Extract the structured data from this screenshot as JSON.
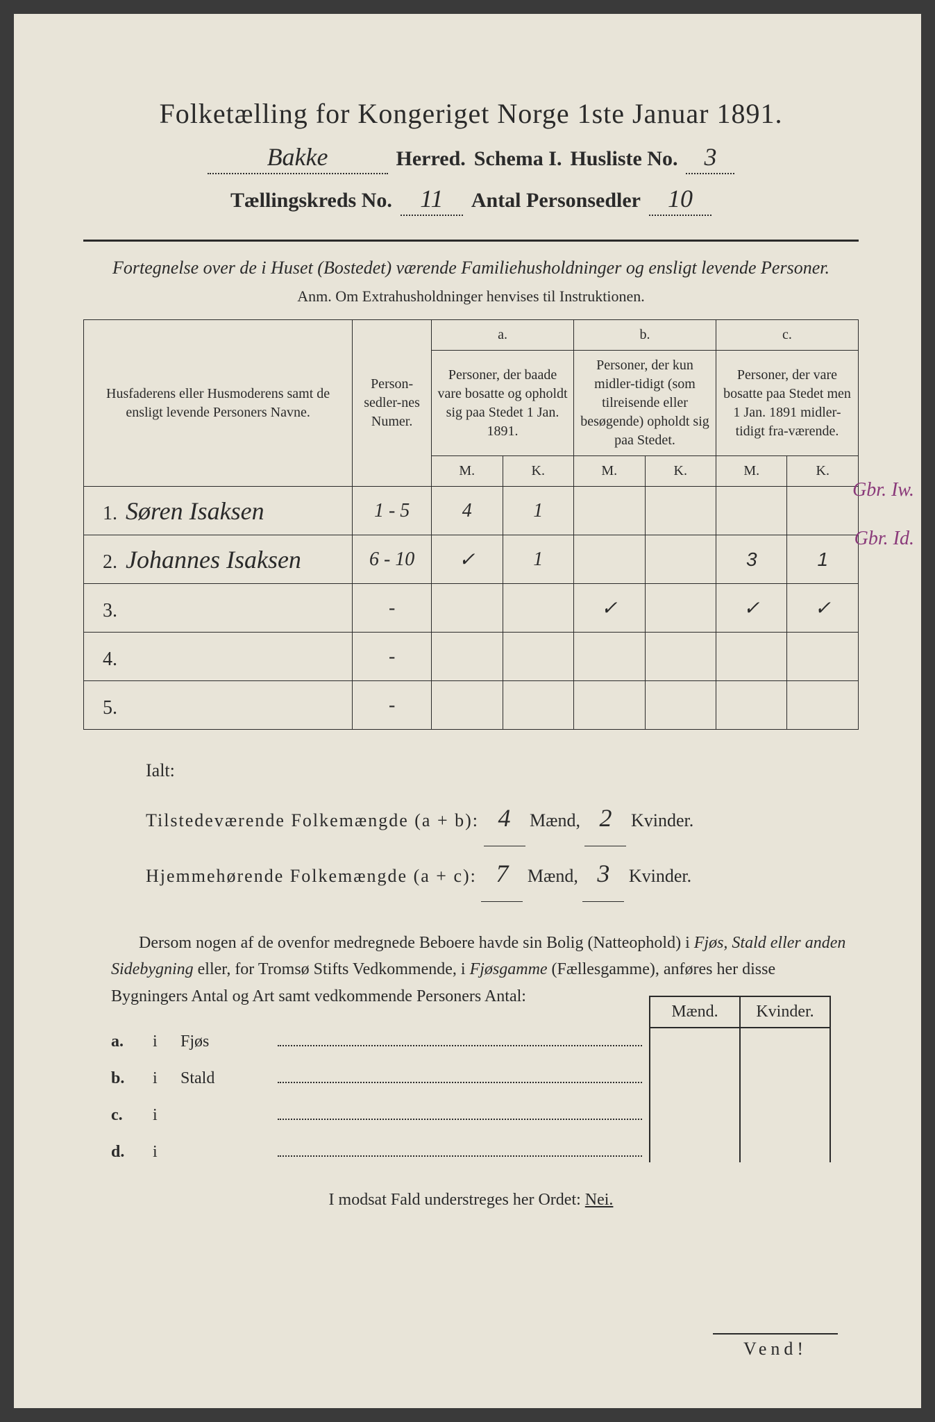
{
  "title": "Folketælling for Kongeriget Norge 1ste Januar 1891.",
  "header": {
    "herred_value": "Bakke",
    "herred_label": "Herred.",
    "schema_label": "Schema I.",
    "husliste_label": "Husliste No.",
    "husliste_value": "3",
    "kreds_label": "Tællingskreds No.",
    "kreds_value": "11",
    "antal_label": "Antal Personsedler",
    "antal_value": "10"
  },
  "subtitle": "Fortegnelse over de i Huset (Bostedet) værende Familiehusholdninger og ensligt levende Personer.",
  "anm": "Anm. Om Extrahusholdninger henvises til Instruktionen.",
  "table": {
    "col_name": "Husfaderens eller Husmoderens samt de ensligt levende Personers Navne.",
    "col_num": "Person-sedler-nes Numer.",
    "col_a_letter": "a.",
    "col_a": "Personer, der baade vare bosatte og opholdt sig paa Stedet 1 Jan. 1891.",
    "col_b_letter": "b.",
    "col_b": "Personer, der kun midler-tidigt (som tilreisende eller besøgende) opholdt sig paa Stedet.",
    "col_c_letter": "c.",
    "col_c": "Personer, der vare bosatte paa Stedet men 1 Jan. 1891 midler-tidigt fra-værende.",
    "m": "M.",
    "k": "K.",
    "rows": [
      {
        "n": "1.",
        "name": "Søren Isaksen",
        "num": "1 - 5",
        "am": "4",
        "ak": "1",
        "bm": "",
        "bk": "",
        "cm": "",
        "ck": "",
        "ann": "Gbr. Iw."
      },
      {
        "n": "2.",
        "name": "Johannes Isaksen",
        "num": "6 - 10",
        "am": "✓",
        "ak": "1",
        "bm": "",
        "bk": "",
        "cm": "3",
        "ck": "1",
        "ann": "Gbr. Id."
      },
      {
        "n": "3.",
        "name": "",
        "num": "-",
        "am": "",
        "ak": "",
        "bm": "✓",
        "bk": "",
        "cm": "✓",
        "ck": "✓",
        "ann": ""
      },
      {
        "n": "4.",
        "name": "",
        "num": "-",
        "am": "",
        "ak": "",
        "bm": "",
        "bk": "",
        "cm": "",
        "ck": "",
        "ann": ""
      },
      {
        "n": "5.",
        "name": "",
        "num": "-",
        "am": "",
        "ak": "",
        "bm": "",
        "bk": "",
        "cm": "",
        "ck": "",
        "ann": ""
      }
    ]
  },
  "summary": {
    "ialt": "Ialt:",
    "line1_a": "Tilstedeværende Folkemængde (a + b):",
    "line1_m": "4",
    "line1_k": "2",
    "line2_a": "Hjemmehørende Folkemængde (a + c):",
    "line2_m": "7",
    "line2_k": "3",
    "maend": "Mænd,",
    "kvinder": "Kvinder."
  },
  "para": {
    "p1a": "Dersom nogen af de ovenfor medregnede Beboere havde sin Bolig (Natteophold) i ",
    "p1b": "Fjøs, Stald eller anden Sidebygning",
    "p1c": " eller, for Tromsø Stifts Vedkommende, i ",
    "p1d": "Fjøsgamme",
    "p1e": " (Fællesgamme), anføres her disse Bygningers Antal og Art samt vedkommende Personers Antal:"
  },
  "outbuild": {
    "maend": "Mænd.",
    "kvinder": "Kvinder.",
    "rows": [
      {
        "tag": "a.",
        "i": "i",
        "label": "Fjøs"
      },
      {
        "tag": "b.",
        "i": "i",
        "label": "Stald"
      },
      {
        "tag": "c.",
        "i": "i",
        "label": ""
      },
      {
        "tag": "d.",
        "i": "i",
        "label": ""
      }
    ]
  },
  "modsat_a": "I modsat Fald understreges her Ordet: ",
  "modsat_b": "Nei.",
  "vend": "Vend!"
}
